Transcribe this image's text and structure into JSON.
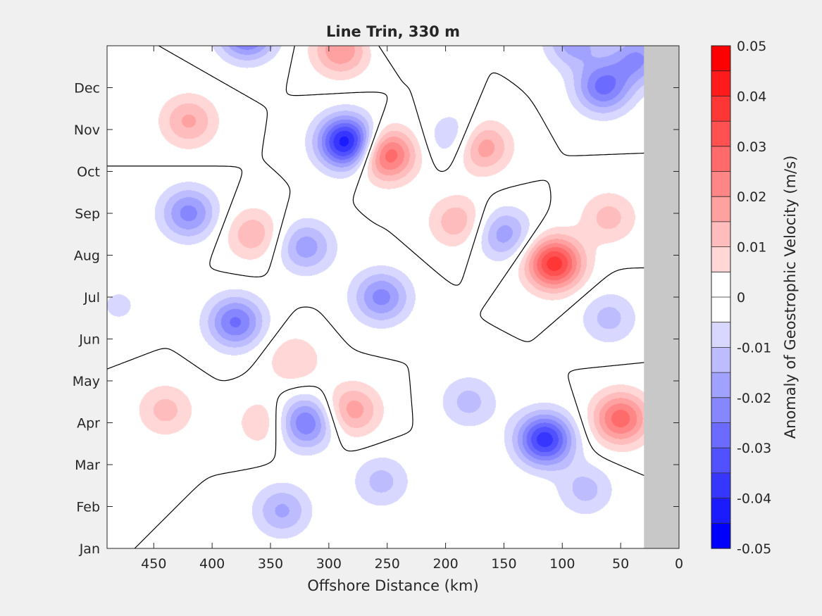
{
  "chart_data": {
    "type": "heatmap",
    "title": "Line Trin, 330 m",
    "xlabel": "Offshore Distance (km)",
    "ylabel": "",
    "x_axis_reversed": true,
    "xlim": [
      0,
      490
    ],
    "x_ticks": [
      450,
      400,
      350,
      300,
      250,
      200,
      150,
      100,
      50,
      0
    ],
    "y_categories": [
      "Jan",
      "Feb",
      "Mar",
      "Apr",
      "May",
      "Jun",
      "Jul",
      "Aug",
      "Sep",
      "Oct",
      "Nov",
      "Dec"
    ],
    "no_data_region_x": [
      0,
      30
    ],
    "no_data_color": "#c8c8c8",
    "zero_contour_color": "#000000",
    "colorbar": {
      "label": "Anomaly of Geostrophic Velocity (m/s)",
      "clim": [
        -0.05,
        0.05
      ],
      "tick_values": [
        0.05,
        0.04,
        0.03,
        0.02,
        0.01,
        0,
        -0.01,
        -0.02,
        -0.03,
        -0.04,
        -0.05
      ],
      "tick_labels": [
        "0.05",
        "0.04",
        "0.03",
        "0.02",
        "0.01",
        "0",
        "-0.01",
        "-0.02",
        "-0.03",
        "-0.04",
        "-0.05"
      ],
      "levels": 20,
      "positive_color": "#ff0000",
      "negative_color": "#0000ff",
      "zero_color": "#ffffff"
    },
    "features": [
      {
        "x": 107,
        "month": 6.8,
        "value": 0.038
      },
      {
        "x": 250,
        "month": 9.4,
        "value": 0.03
      },
      {
        "x": 170,
        "month": 9.6,
        "value": 0.022
      },
      {
        "x": 290,
        "month": 11.9,
        "value": 0.02
      },
      {
        "x": 420,
        "month": 10.2,
        "value": 0.016
      },
      {
        "x": 365,
        "month": 7.5,
        "value": 0.014
      },
      {
        "x": 190,
        "month": 7.8,
        "value": 0.014
      },
      {
        "x": 280,
        "month": 3.3,
        "value": 0.018
      },
      {
        "x": 440,
        "month": 3.3,
        "value": 0.012
      },
      {
        "x": 50,
        "month": 3.1,
        "value": 0.028
      },
      {
        "x": 330,
        "month": 4.5,
        "value": 0.01
      },
      {
        "x": 355,
        "month": 3.0,
        "value": 0.01
      },
      {
        "x": 60,
        "month": 7.9,
        "value": 0.012
      },
      {
        "x": 285,
        "month": 9.7,
        "value": -0.044
      },
      {
        "x": 115,
        "month": 2.6,
        "value": -0.038
      },
      {
        "x": 370,
        "month": 12.3,
        "value": -0.03
      },
      {
        "x": 65,
        "month": 11.0,
        "value": -0.026
      },
      {
        "x": 35,
        "month": 11.7,
        "value": -0.02
      },
      {
        "x": 90,
        "month": 12.1,
        "value": -0.018
      },
      {
        "x": 420,
        "month": 8.0,
        "value": -0.022
      },
      {
        "x": 380,
        "month": 5.4,
        "value": -0.026
      },
      {
        "x": 320,
        "month": 3.0,
        "value": -0.026
      },
      {
        "x": 255,
        "month": 6.0,
        "value": -0.022
      },
      {
        "x": 320,
        "month": 7.2,
        "value": -0.018
      },
      {
        "x": 190,
        "month": 9.8,
        "value": -0.014
      },
      {
        "x": 150,
        "month": 7.5,
        "value": -0.018
      },
      {
        "x": 60,
        "month": 5.5,
        "value": -0.012
      },
      {
        "x": 180,
        "month": 3.5,
        "value": -0.012
      },
      {
        "x": 340,
        "month": 0.9,
        "value": -0.016
      },
      {
        "x": 255,
        "month": 1.6,
        "value": -0.012
      },
      {
        "x": 80,
        "month": 1.4,
        "value": -0.012
      },
      {
        "x": 245,
        "month": 12.6,
        "value": -0.01
      },
      {
        "x": 480,
        "month": 5.8,
        "value": -0.006
      }
    ]
  }
}
